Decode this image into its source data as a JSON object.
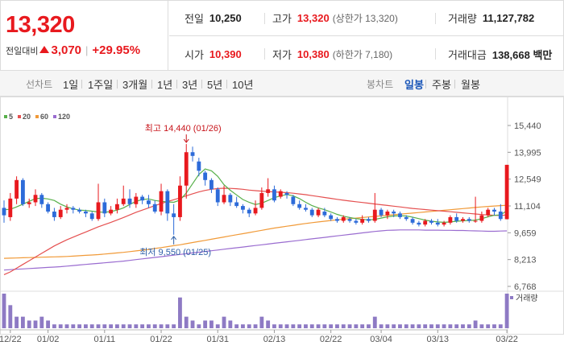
{
  "summary": {
    "price": "13,320",
    "change_label": "전일대비",
    "change_value": "3,070",
    "change_percent": "+29.95%",
    "prev_close": {
      "label": "전일",
      "value": "10,250"
    },
    "high": {
      "label": "고가",
      "value": "13,320",
      "sub": "(상한가 13,320)"
    },
    "volume": {
      "label": "거래량",
      "value": "11,127,782"
    },
    "open": {
      "label": "시가",
      "value": "10,390"
    },
    "low": {
      "label": "저가",
      "value": "10,380",
      "sub": "(하한가 7,180)"
    },
    "turnover": {
      "label": "거래대금",
      "value": "138,668 백만"
    }
  },
  "toolbar": {
    "line_label": "선차트",
    "line_periods": [
      "1일",
      "1주일",
      "3개월",
      "1년",
      "3년",
      "5년",
      "10년"
    ],
    "candle_label": "봉차트",
    "candle_periods": [
      "일봉",
      "주봉",
      "월봉"
    ],
    "candle_selected": "일봉"
  },
  "colors": {
    "up": "#e8191e",
    "down": "#2d6bd9",
    "ma5": "#57b04a",
    "ma20": "#e55050",
    "ma60": "#f19a38",
    "ma120": "#9a6cd0",
    "volume": "#8e7ac4"
  },
  "chart_data": {
    "type": "candlestick",
    "legend": [
      "5",
      "20",
      "60",
      "120"
    ],
    "ylim": [
      6768,
      15440
    ],
    "yticks": [
      "15,440",
      "13,995",
      "12,549",
      "11,104",
      "9,659",
      "8,213",
      "6,768"
    ],
    "xticks": [
      "12/22",
      "01/02",
      "01/11",
      "01/22",
      "01/31",
      "02/13",
      "02/22",
      "03/04",
      "03/13",
      "03/22"
    ],
    "annotations": {
      "high": "최고 14,440 (01/26)",
      "low": "최저 9,550 (01/25)"
    },
    "volume_label": "거래량",
    "candles": [
      [
        11000,
        10600,
        11400,
        10200
      ],
      [
        10500,
        11500,
        11800,
        10300
      ],
      [
        11500,
        12500,
        12700,
        11200
      ],
      [
        12500,
        11200,
        12600,
        11100
      ],
      [
        11200,
        11300,
        11500,
        11000
      ],
      [
        11300,
        11700,
        12000,
        11100
      ],
      [
        11700,
        11200,
        11800,
        11000
      ],
      [
        11200,
        10800,
        11300,
        10700
      ],
      [
        10800,
        10500,
        11000,
        10300
      ],
      [
        10500,
        10900,
        11100,
        10400
      ],
      [
        10900,
        11000,
        11200,
        10700
      ],
      [
        11000,
        10900,
        11100,
        10700
      ],
      [
        10900,
        10800,
        11000,
        10700
      ],
      [
        10800,
        10700,
        10900,
        10500
      ],
      [
        10700,
        10400,
        10800,
        10300
      ],
      [
        10400,
        11300,
        12300,
        10300
      ],
      [
        11300,
        10700,
        11500,
        10500
      ],
      [
        10700,
        10900,
        11100,
        10600
      ],
      [
        10900,
        11200,
        11500,
        10700
      ],
      [
        11200,
        11500,
        12200,
        11100
      ],
      [
        11500,
        11200,
        12000,
        11000
      ],
      [
        11200,
        11600,
        11800,
        11000
      ],
      [
        11600,
        11400,
        11700,
        11200
      ],
      [
        11400,
        11200,
        11700,
        11000
      ],
      [
        11200,
        10800,
        11400,
        10700
      ],
      [
        10800,
        11900,
        12300,
        10600
      ],
      [
        11900,
        10700,
        12000,
        10300
      ],
      [
        10700,
        10500,
        11200,
        9550
      ],
      [
        10500,
        12200,
        12700,
        10300
      ],
      [
        12200,
        14000,
        14440,
        11500
      ],
      [
        14000,
        13800,
        14300,
        13500
      ],
      [
        13500,
        13000,
        13700,
        12700
      ],
      [
        12900,
        12500,
        13000,
        12200
      ],
      [
        12500,
        12000,
        12600,
        11800
      ],
      [
        12000,
        11300,
        12100,
        11100
      ],
      [
        11300,
        11700,
        12200,
        11200
      ],
      [
        11700,
        11300,
        11800,
        11100
      ],
      [
        11300,
        11100,
        11600,
        11000
      ],
      [
        11100,
        10900,
        11200,
        10700
      ],
      [
        10900,
        10700,
        11000,
        10500
      ],
      [
        10700,
        11000,
        11400,
        10600
      ],
      [
        11000,
        11800,
        12100,
        10900
      ],
      [
        11800,
        12000,
        12600,
        11600
      ],
      [
        12000,
        11400,
        12200,
        11300
      ],
      [
        11600,
        11900,
        12000,
        11500
      ],
      [
        11800,
        11700,
        11900,
        11500
      ],
      [
        11600,
        11200,
        11700,
        11100
      ],
      [
        11200,
        11000,
        11400,
        10900
      ],
      [
        11000,
        10900,
        11200,
        10800
      ],
      [
        10900,
        10600,
        11000,
        10500
      ],
      [
        10600,
        10900,
        11000,
        10500
      ],
      [
        10800,
        10600,
        11000,
        10500
      ],
      [
        10600,
        10400,
        10700,
        10300
      ],
      [
        10400,
        10300,
        10500,
        10200
      ],
      [
        10300,
        10500,
        10600,
        10200
      ],
      [
        10400,
        10300,
        10500,
        10200
      ],
      [
        10300,
        10200,
        10400,
        10100
      ],
      [
        10200,
        10400,
        10600,
        10100
      ],
      [
        10400,
        10300,
        10500,
        10200
      ],
      [
        10300,
        10900,
        11800,
        10200
      ],
      [
        10900,
        10600,
        11000,
        10500
      ],
      [
        10600,
        10800,
        10900,
        10400
      ],
      [
        10800,
        10700,
        10900,
        10500
      ],
      [
        10700,
        10500,
        10800,
        10400
      ],
      [
        10500,
        10400,
        10600,
        10300
      ],
      [
        10400,
        10200,
        10500,
        10100
      ],
      [
        10200,
        10100,
        10300,
        10000
      ],
      [
        10100,
        10300,
        10400,
        10000
      ],
      [
        10300,
        10200,
        10400,
        10100
      ],
      [
        10200,
        10100,
        10400,
        10000
      ],
      [
        10100,
        10200,
        10300,
        10000
      ],
      [
        10200,
        10500,
        10600,
        10100
      ],
      [
        10500,
        10300,
        10700,
        10200
      ],
      [
        10300,
        10400,
        10500,
        10200
      ],
      [
        10400,
        10300,
        10500,
        10200
      ],
      [
        10300,
        10300,
        11600,
        10200
      ],
      [
        10300,
        10600,
        10800,
        10200
      ],
      [
        10600,
        10900,
        11000,
        10500
      ],
      [
        10900,
        10800,
        11000,
        10600
      ],
      [
        10800,
        10400,
        11200,
        10300
      ],
      [
        10390,
        13320,
        13320,
        10380
      ]
    ],
    "volumes": [
      9,
      6,
      3,
      3,
      2,
      2,
      3,
      2,
      1,
      1,
      1,
      1,
      1,
      1,
      1,
      1,
      1,
      1,
      1,
      1,
      1,
      1,
      1,
      1,
      1,
      1,
      1,
      1,
      8,
      3,
      2,
      1,
      2,
      2,
      1,
      3,
      2,
      1,
      1,
      1,
      1,
      3,
      2,
      1,
      1,
      1,
      1,
      1,
      1,
      1,
      1,
      1,
      1,
      1,
      1,
      1,
      1,
      1,
      1,
      3,
      1,
      1,
      1,
      1,
      1,
      1,
      1,
      1,
      1,
      1,
      1,
      1,
      1,
      1,
      1,
      2,
      1,
      1,
      1,
      1,
      9
    ],
    "ma5": [
      10900,
      10920,
      11050,
      11200,
      11350,
      11500,
      11520,
      11480,
      11400,
      11200,
      11050,
      10950,
      10880,
      10860,
      10820,
      10780,
      10760,
      10800,
      10880,
      11000,
      11180,
      11350,
      11450,
      11480,
      11400,
      11350,
      11320,
      11300,
      11420,
      11800,
      12300,
      12800,
      13100,
      13000,
      12700,
      12250,
      11950,
      11700,
      11450,
      11300,
      11180,
      11250,
      11400,
      11550,
      11650,
      11720,
      11650,
      11500,
      11300,
      11120,
      11000,
      10900,
      10780,
      10650,
      10550,
      10480,
      10420,
      10380,
      10350,
      10380,
      10450,
      10520,
      10560,
      10580,
      10560,
      10500,
      10420,
      10340,
      10280,
      10240,
      10220,
      10240,
      10280,
      10300,
      10320,
      10340,
      10420,
      10520,
      10600,
      10620,
      10850
    ],
    "ma20": [
      7400,
      7550,
      7750,
      7950,
      8150,
      8350,
      8550,
      8750,
      8950,
      9120,
      9280,
      9420,
      9560,
      9700,
      9840,
      9980,
      10100,
      10220,
      10350,
      10480,
      10620,
      10760,
      10880,
      11000,
      11120,
      11230,
      11340,
      11440,
      11540,
      11650,
      11760,
      11860,
      11940,
      12000,
      12040,
      12060,
      12050,
      12030,
      12000,
      11960,
      11930,
      11900,
      11880,
      11860,
      11840,
      11820,
      11790,
      11750,
      11710,
      11660,
      11610,
      11560,
      11510,
      11460,
      11410,
      11370,
      11330,
      11290,
      11250,
      11210,
      11170,
      11130,
      11090,
      11050,
      11010,
      10970,
      10940,
      10910,
      10880,
      10850,
      10820,
      10790,
      10760,
      10730,
      10700,
      10670,
      10640,
      10620,
      10600,
      10590,
      10620
    ],
    "ma60": [
      8280,
      8290,
      8300,
      8310,
      8320,
      8330,
      8340,
      8350,
      8360,
      8370,
      8380,
      8400,
      8420,
      8440,
      8460,
      8480,
      8510,
      8540,
      8570,
      8600,
      8640,
      8680,
      8720,
      8760,
      8810,
      8860,
      8910,
      8960,
      9010,
      9070,
      9130,
      9190,
      9250,
      9310,
      9370,
      9430,
      9490,
      9550,
      9610,
      9670,
      9730,
      9790,
      9850,
      9910,
      9960,
      10010,
      10060,
      10110,
      10160,
      10200,
      10240,
      10280,
      10320,
      10360,
      10390,
      10420,
      10450,
      10480,
      10510,
      10540,
      10570,
      10600,
      10630,
      10660,
      10690,
      10720,
      10750,
      10780,
      10810,
      10840,
      10870,
      10900,
      10930,
      10960,
      10990,
      11020,
      11050,
      11080,
      11100,
      11120,
      11140
    ],
    "ma120": [
      7650,
      7670,
      7690,
      7710,
      7730,
      7750,
      7770,
      7790,
      7810,
      7830,
      7860,
      7890,
      7920,
      7950,
      7980,
      8010,
      8040,
      8070,
      8100,
      8130,
      8170,
      8210,
      8250,
      8290,
      8330,
      8370,
      8410,
      8450,
      8490,
      8530,
      8570,
      8610,
      8650,
      8690,
      8730,
      8770,
      8810,
      8850,
      8890,
      8930,
      8970,
      9010,
      9050,
      9090,
      9130,
      9170,
      9210,
      9250,
      9290,
      9330,
      9370,
      9410,
      9450,
      9490,
      9530,
      9570,
      9610,
      9650,
      9690,
      9730,
      9760,
      9790,
      9800,
      9810,
      9810,
      9810,
      9810,
      9800,
      9800,
      9800,
      9790,
      9790,
      9780,
      9780,
      9770,
      9760,
      9750,
      9740,
      9740,
      9750,
      9760
    ]
  }
}
